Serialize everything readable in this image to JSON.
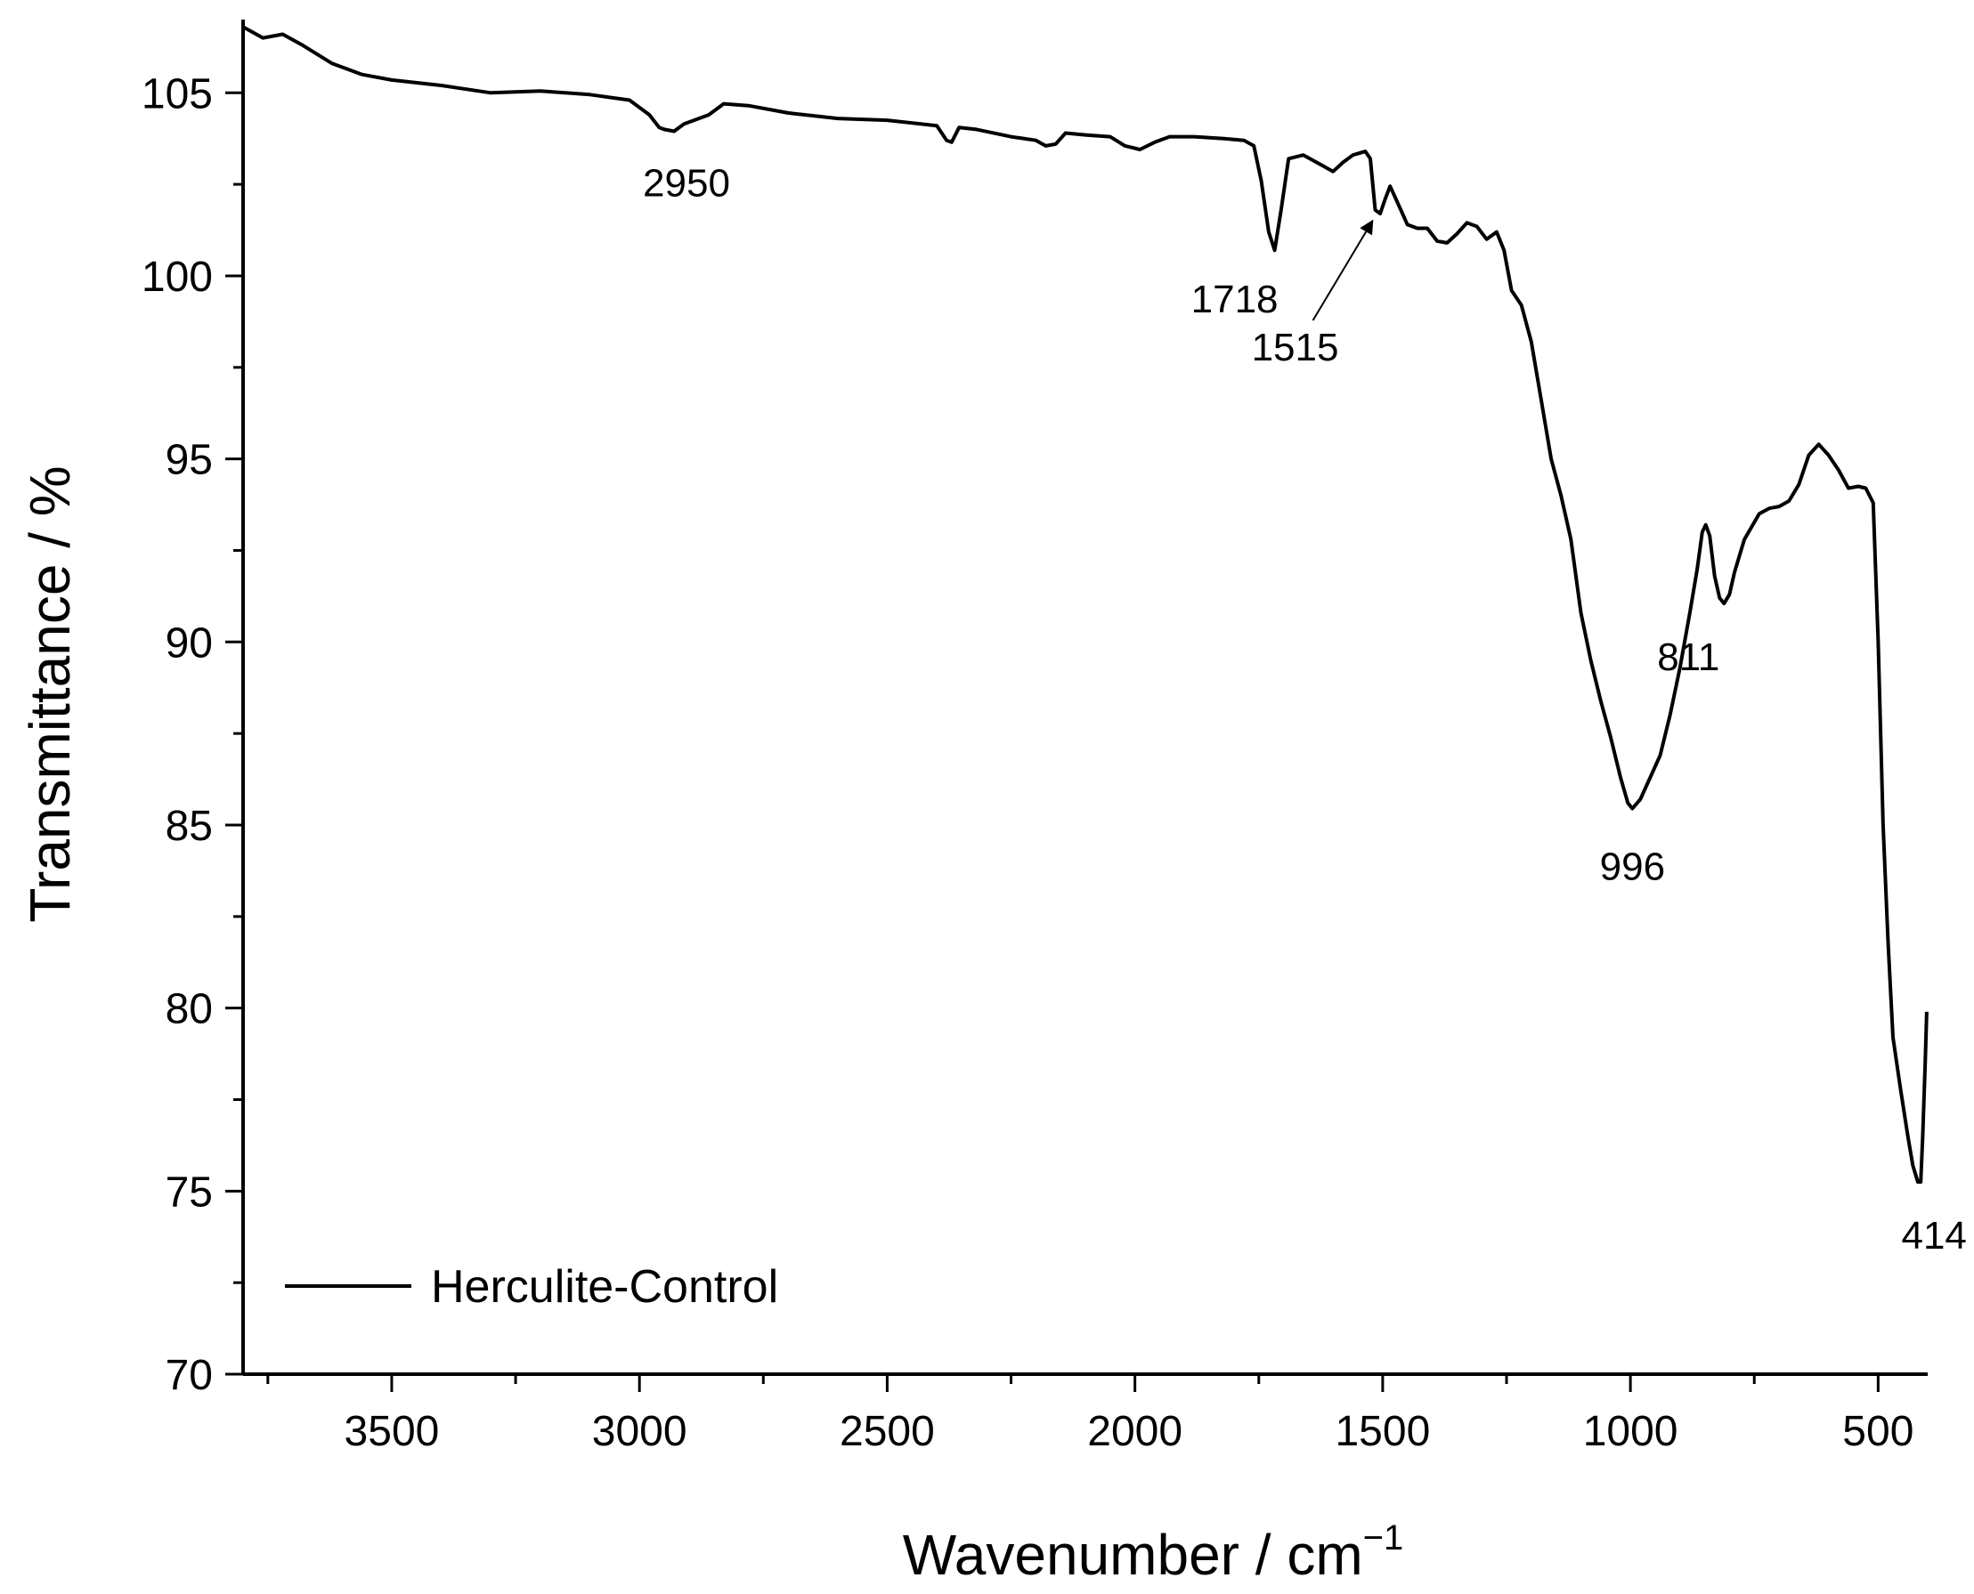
{
  "chart_data": {
    "type": "line",
    "title": "",
    "xlabel": "Wavenumber / cm",
    "xlabel_sup": "−1",
    "ylabel": "Transmittance / %",
    "xlim": [
      3800,
      400
    ],
    "ylim": [
      70,
      107
    ],
    "x_reversed": true,
    "x_ticks": [
      3500,
      3000,
      2500,
      2000,
      1500,
      1000,
      500
    ],
    "x_tick_labels": [
      "3500",
      "3000",
      "2500",
      "2000",
      "1500",
      "1000",
      "500"
    ],
    "y_ticks": [
      70,
      75,
      80,
      85,
      90,
      95,
      100,
      105
    ],
    "y_tick_labels": [
      "70",
      "75",
      "80",
      "85",
      "90",
      "95",
      "100",
      "105"
    ],
    "grid": false,
    "legend": {
      "position": "bottom-left",
      "entries": [
        "Herculite-Control"
      ]
    },
    "series": [
      {
        "name": "Herculite-Control",
        "color": "#000000",
        "points": [
          [
            3800,
            106.8
          ],
          [
            3760,
            106.5
          ],
          [
            3720,
            106.6
          ],
          [
            3680,
            106.3
          ],
          [
            3620,
            105.8
          ],
          [
            3560,
            105.5
          ],
          [
            3500,
            105.35
          ],
          [
            3400,
            105.2
          ],
          [
            3300,
            105.0
          ],
          [
            3200,
            105.05
          ],
          [
            3100,
            104.95
          ],
          [
            3020,
            104.8
          ],
          [
            2980,
            104.4
          ],
          [
            2960,
            104.05
          ],
          [
            2950,
            104.0
          ],
          [
            2930,
            103.95
          ],
          [
            2910,
            104.15
          ],
          [
            2880,
            104.3
          ],
          [
            2860,
            104.4
          ],
          [
            2830,
            104.7
          ],
          [
            2780,
            104.65
          ],
          [
            2700,
            104.45
          ],
          [
            2600,
            104.3
          ],
          [
            2500,
            104.25
          ],
          [
            2400,
            104.1
          ],
          [
            2380,
            103.7
          ],
          [
            2370,
            103.65
          ],
          [
            2355,
            104.05
          ],
          [
            2320,
            104.0
          ],
          [
            2250,
            103.8
          ],
          [
            2200,
            103.7
          ],
          [
            2180,
            103.55
          ],
          [
            2160,
            103.6
          ],
          [
            2140,
            103.9
          ],
          [
            2100,
            103.85
          ],
          [
            2050,
            103.8
          ],
          [
            2020,
            103.55
          ],
          [
            1990,
            103.45
          ],
          [
            1960,
            103.65
          ],
          [
            1930,
            103.8
          ],
          [
            1880,
            103.8
          ],
          [
            1820,
            103.75
          ],
          [
            1780,
            103.7
          ],
          [
            1760,
            103.55
          ],
          [
            1745,
            102.6
          ],
          [
            1730,
            101.2
          ],
          [
            1718,
            100.7
          ],
          [
            1705,
            101.8
          ],
          [
            1690,
            103.2
          ],
          [
            1660,
            103.3
          ],
          [
            1620,
            103.0
          ],
          [
            1600,
            102.85
          ],
          [
            1580,
            103.1
          ],
          [
            1560,
            103.3
          ],
          [
            1535,
            103.4
          ],
          [
            1525,
            103.2
          ],
          [
            1515,
            101.8
          ],
          [
            1505,
            101.7
          ],
          [
            1495,
            102.1
          ],
          [
            1485,
            102.45
          ],
          [
            1470,
            102.0
          ],
          [
            1450,
            101.4
          ],
          [
            1430,
            101.3
          ],
          [
            1410,
            101.3
          ],
          [
            1390,
            100.95
          ],
          [
            1370,
            100.9
          ],
          [
            1350,
            101.15
          ],
          [
            1330,
            101.45
          ],
          [
            1310,
            101.35
          ],
          [
            1290,
            101.0
          ],
          [
            1270,
            101.2
          ],
          [
            1255,
            100.7
          ],
          [
            1240,
            99.6
          ],
          [
            1220,
            99.2
          ],
          [
            1200,
            98.2
          ],
          [
            1180,
            96.6
          ],
          [
            1160,
            95.0
          ],
          [
            1140,
            94.0
          ],
          [
            1120,
            92.8
          ],
          [
            1100,
            90.8
          ],
          [
            1080,
            89.5
          ],
          [
            1060,
            88.4
          ],
          [
            1040,
            87.4
          ],
          [
            1020,
            86.3
          ],
          [
            1005,
            85.6
          ],
          [
            996,
            85.45
          ],
          [
            980,
            85.7
          ],
          [
            960,
            86.3
          ],
          [
            940,
            86.9
          ],
          [
            920,
            88.0
          ],
          [
            900,
            89.3
          ],
          [
            880,
            90.8
          ],
          [
            865,
            92.0
          ],
          [
            855,
            93.0
          ],
          [
            848,
            93.2
          ],
          [
            840,
            92.9
          ],
          [
            830,
            91.8
          ],
          [
            820,
            91.2
          ],
          [
            811,
            91.05
          ],
          [
            800,
            91.3
          ],
          [
            790,
            91.9
          ],
          [
            770,
            92.8
          ],
          [
            740,
            93.5
          ],
          [
            720,
            93.65
          ],
          [
            700,
            93.7
          ],
          [
            680,
            93.85
          ],
          [
            660,
            94.3
          ],
          [
            640,
            95.1
          ],
          [
            620,
            95.4
          ],
          [
            600,
            95.1
          ],
          [
            580,
            94.7
          ],
          [
            560,
            94.2
          ],
          [
            540,
            94.25
          ],
          [
            525,
            94.2
          ],
          [
            510,
            93.8
          ],
          [
            500,
            90.0
          ],
          [
            490,
            85.0
          ],
          [
            480,
            81.8
          ],
          [
            470,
            79.2
          ],
          [
            455,
            77.8
          ],
          [
            440,
            76.5
          ],
          [
            430,
            75.7
          ],
          [
            420,
            75.25
          ],
          [
            414,
            75.25
          ],
          [
            410,
            76.5
          ],
          [
            405,
            78.5
          ],
          [
            402,
            79.9
          ]
        ]
      }
    ],
    "annotations": [
      {
        "text": "2950",
        "x": 2950,
        "y": 104.0
      },
      {
        "text": "1718",
        "x": 1718,
        "y": 100.7
      },
      {
        "text": "1515",
        "x": 1515,
        "y": 101.7,
        "arrow": true
      },
      {
        "text": "996",
        "x": 996,
        "y": 85.45
      },
      {
        "text": "811",
        "x": 811,
        "y": 91.05
      },
      {
        "text": "414",
        "x": 414,
        "y": 75.25
      }
    ]
  }
}
